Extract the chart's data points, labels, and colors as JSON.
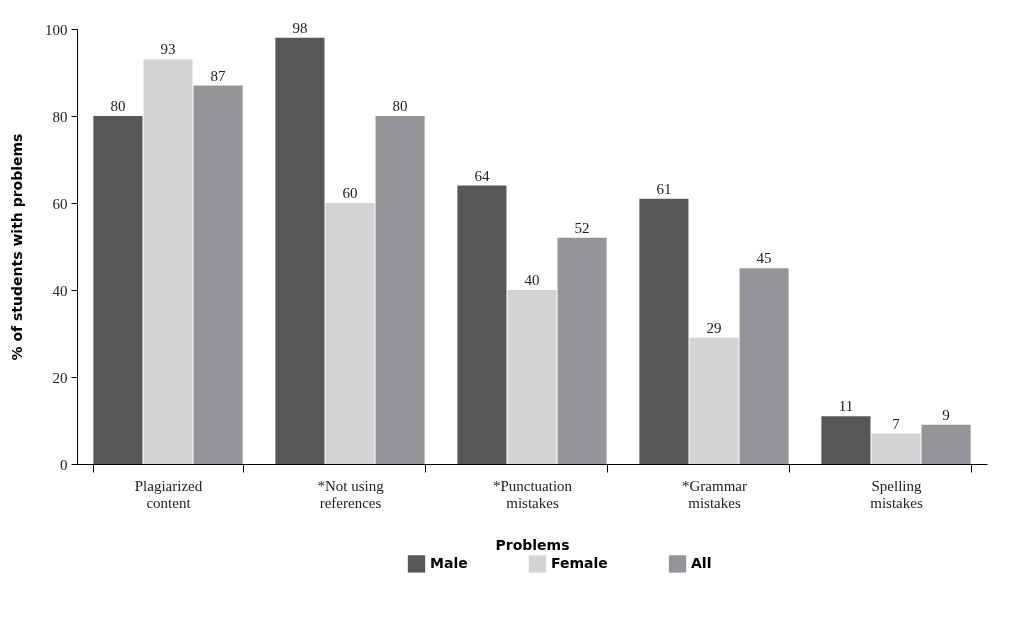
{
  "chart_data": {
    "type": "bar",
    "xlabel": "Problems",
    "ylabel": "% of students with problems",
    "categories": [
      "Plagiarized\ncontent",
      "*Not using\nreferences",
      "*Punctuation\nmistakes",
      "*Grammar\nmistakes",
      "Spelling\nmistakes"
    ],
    "series": [
      {
        "name": "Male",
        "color": "#555759",
        "values": [
          80,
          98,
          64,
          61,
          11
        ]
      },
      {
        "name": "Female",
        "color": "#d3d4d6",
        "values": [
          93,
          60,
          40,
          29,
          7
        ]
      },
      {
        "name": "All",
        "color": "#939598",
        "values": [
          87,
          80,
          52,
          45,
          9
        ]
      }
    ],
    "ylim": [
      0,
      100
    ],
    "yticks": [
      0,
      20,
      40,
      60,
      80,
      100
    ],
    "grid": false,
    "legend": "bottom",
    "data_labels": true
  }
}
